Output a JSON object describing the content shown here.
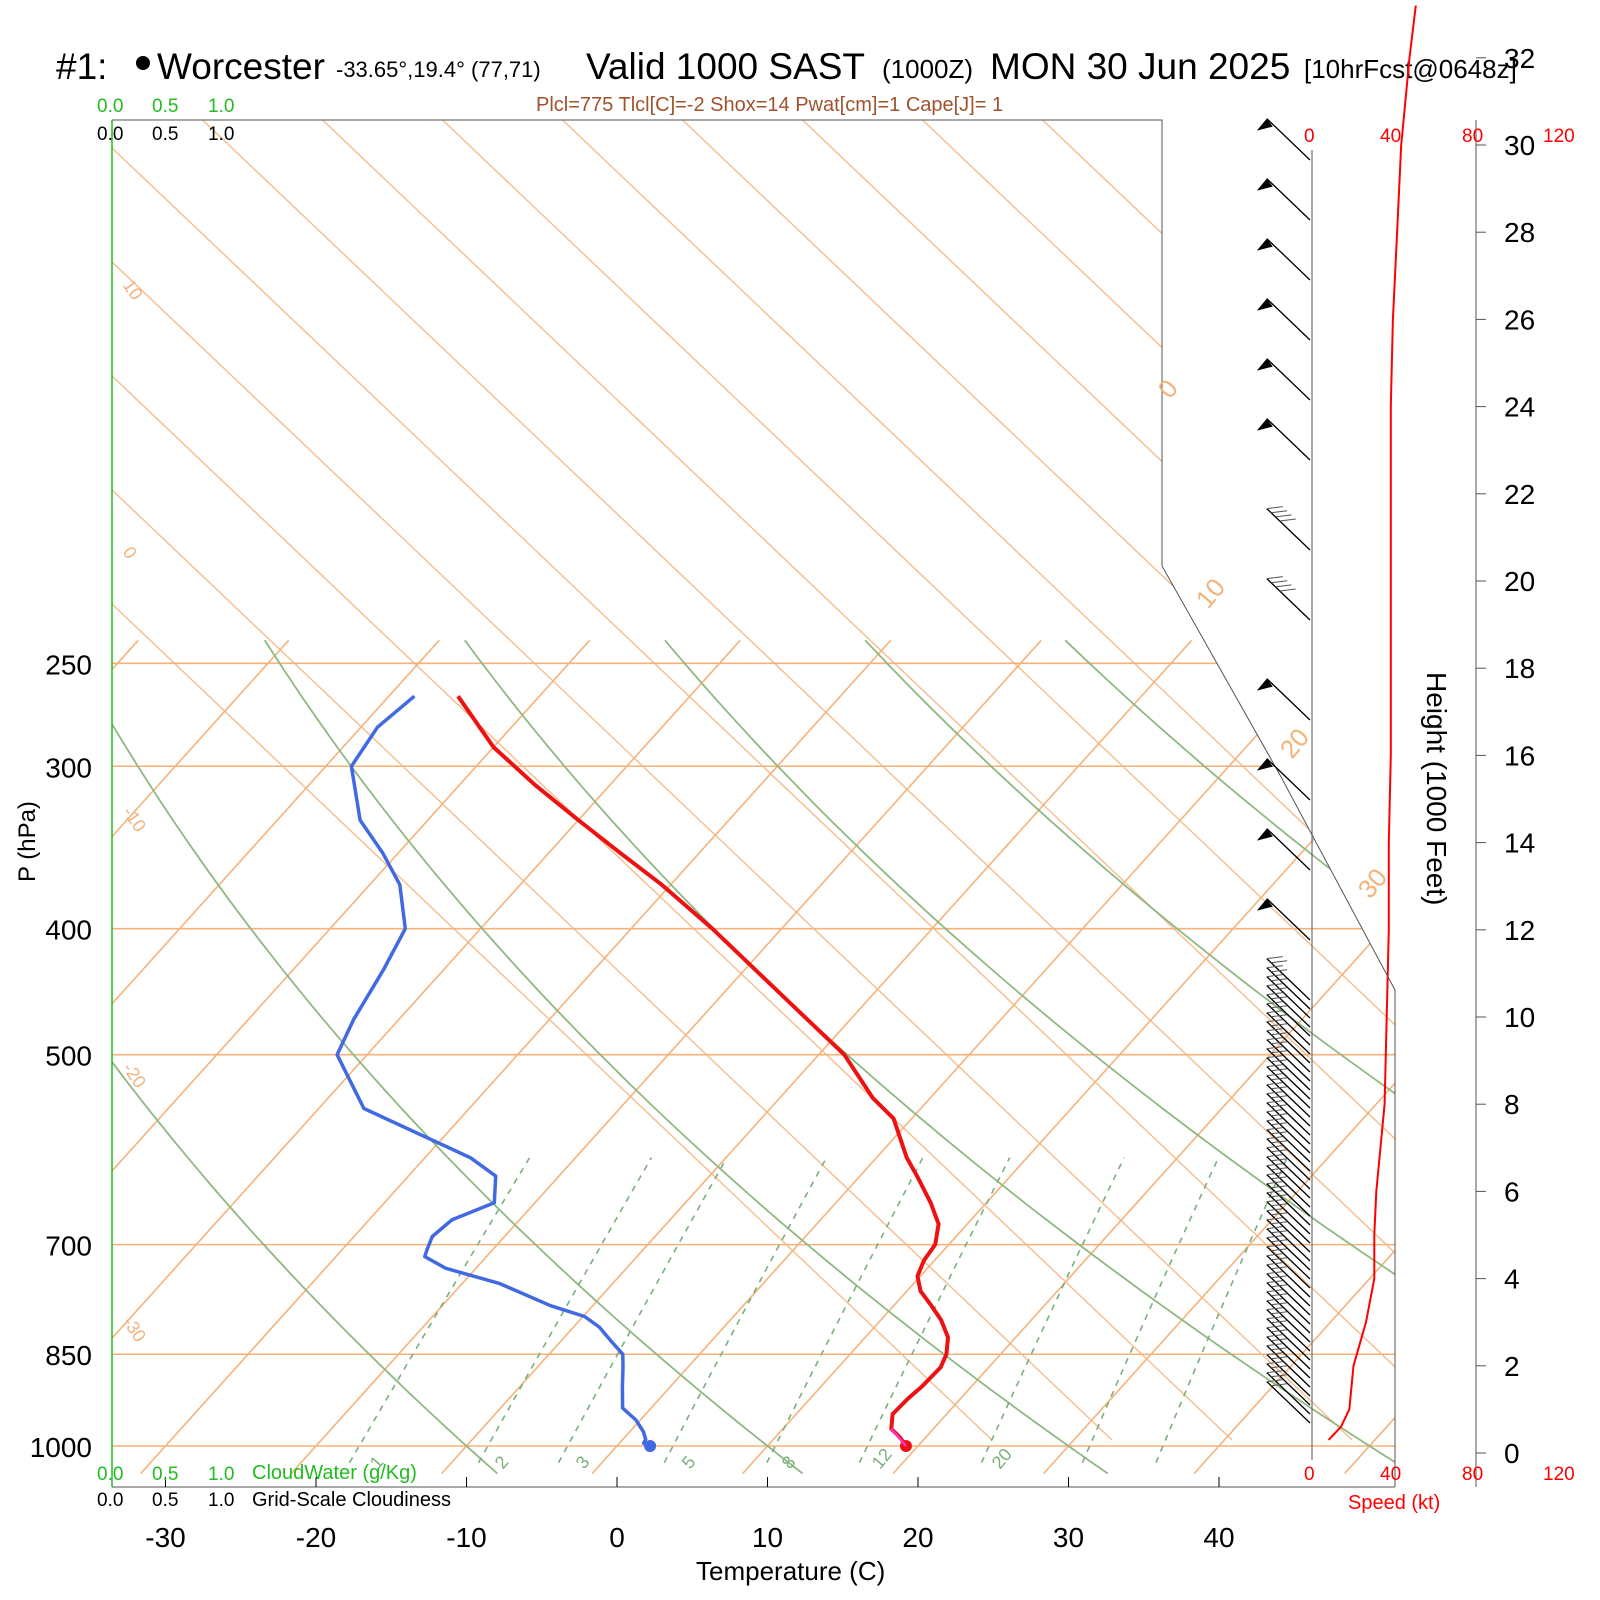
{
  "header": {
    "plot_id": "#1:",
    "station": "Worcester",
    "coords": "-33.65°,19.4° (77,71)",
    "valid_main": "Valid 1000 SAST",
    "valid_z": "(1000Z)",
    "date": "MON 30 Jun 2025",
    "forecast": "[10hrFcst@0648z]",
    "indices": "Plcl=775 Tlcl[C]=-2 Shox=14 Pwat[cm]=1 Cape[J]= 1"
  },
  "colors": {
    "temperature": "#ee1111",
    "dewpoint": "#4169e1",
    "isotherm": "#f5b27a",
    "dry_adiabat": "#8fb883",
    "mixing_ratio": "#79b079",
    "cloud_scale": "#22bb22",
    "speed": "#ff0000",
    "indices": "#a0522d"
  },
  "scales": {
    "cloudwater_ticks": [
      "0.0",
      "0.5",
      "1.0"
    ],
    "cloudiness_ticks": [
      "0.0",
      "0.5",
      "1.0"
    ],
    "cloudwater_label": "CloudWater (g/Kg)",
    "cloudiness_label": "Grid-Scale Cloudiness",
    "speed_ticks": [
      "0",
      "40",
      "80",
      "120"
    ],
    "speed_label": "Speed (kt)"
  },
  "chart_data": {
    "type": "line",
    "chart_kind": "Skew-T log-P sounding",
    "xlabel": "Temperature (C)",
    "ylabel": "P (hPa)",
    "y2label": "Height (1000 Feet)",
    "pressure_ticks": [
      250,
      300,
      400,
      500,
      700,
      850,
      1000
    ],
    "temperature_ticks": [
      -30,
      -20,
      -10,
      0,
      10,
      20,
      30,
      40
    ],
    "height_ticks": [
      0,
      2,
      4,
      6,
      8,
      10,
      12,
      14,
      16,
      18,
      20,
      22,
      24,
      26,
      28,
      30,
      32
    ],
    "isotherm_label_values": [
      "10",
      "0",
      "-10",
      "-20",
      "-30"
    ],
    "isotherm_right_labels": [
      "0",
      "10",
      "20",
      "30"
    ],
    "mixing_ratio_labels": [
      "1",
      "2",
      "3",
      "5",
      "8",
      "12",
      "20"
    ],
    "y_scale": "log",
    "ylim": [
      1030,
      250
    ],
    "xlim": [
      -34,
      36
    ],
    "series": [
      {
        "name": "Temperature",
        "points": [
          [
            1000,
            19.2
          ],
          [
            985,
            18.3
          ],
          [
            970,
            17.2
          ],
          [
            945,
            16.4
          ],
          [
            920,
            16.5
          ],
          [
            900,
            16.7
          ],
          [
            870,
            16.8
          ],
          [
            850,
            16.4
          ],
          [
            825,
            15.5
          ],
          [
            800,
            14.0
          ],
          [
            780,
            12.5
          ],
          [
            760,
            10.9
          ],
          [
            740,
            9.8
          ],
          [
            720,
            9.3
          ],
          [
            700,
            9.1
          ],
          [
            675,
            8.1
          ],
          [
            650,
            6.3
          ],
          [
            620,
            3.8
          ],
          [
            600,
            2.0
          ],
          [
            560,
            -1.2
          ],
          [
            540,
            -3.8
          ],
          [
            500,
            -8.3
          ],
          [
            450,
            -16.0
          ],
          [
            400,
            -24.6
          ],
          [
            370,
            -30.6
          ],
          [
            350,
            -35.2
          ],
          [
            330,
            -40.0
          ],
          [
            310,
            -45.0
          ],
          [
            290,
            -50.0
          ],
          [
            265,
            -55.4
          ]
        ]
      },
      {
        "name": "Dewpoint",
        "points": [
          [
            1000,
            2.2
          ],
          [
            995,
            1.6
          ],
          [
            988,
            1.5
          ],
          [
            975,
            0.9
          ],
          [
            955,
            -0.3
          ],
          [
            935,
            -1.9
          ],
          [
            900,
            -3.2
          ],
          [
            870,
            -4.3
          ],
          [
            850,
            -5.1
          ],
          [
            830,
            -6.7
          ],
          [
            810,
            -8.3
          ],
          [
            795,
            -9.9
          ],
          [
            780,
            -12.8
          ],
          [
            750,
            -17.5
          ],
          [
            730,
            -22.0
          ],
          [
            715,
            -24.1
          ],
          [
            705,
            -24.4
          ],
          [
            690,
            -24.8
          ],
          [
            670,
            -24.5
          ],
          [
            650,
            -22.7
          ],
          [
            620,
            -24.2
          ],
          [
            600,
            -27.0
          ],
          [
            550,
            -37.0
          ],
          [
            500,
            -42.0
          ],
          [
            470,
            -43.0
          ],
          [
            430,
            -44.0
          ],
          [
            400,
            -45.0
          ],
          [
            370,
            -48.0
          ],
          [
            350,
            -51.0
          ],
          [
            330,
            -54.5
          ],
          [
            300,
            -58.3
          ],
          [
            280,
            -58.9
          ],
          [
            265,
            -58.3
          ]
        ]
      }
    ],
    "parcel_segment": [
      [
        1000,
        19.2
      ],
      [
        970,
        17.2
      ]
    ],
    "wind_speed_kt": [
      [
        0.3,
        8
      ],
      [
        0.6,
        14
      ],
      [
        1,
        18
      ],
      [
        2,
        20
      ],
      [
        3,
        26
      ],
      [
        4,
        30
      ],
      [
        5,
        30
      ],
      [
        6,
        31
      ],
      [
        8,
        35
      ],
      [
        10,
        36
      ],
      [
        12,
        37
      ],
      [
        14,
        37
      ],
      [
        16,
        38
      ],
      [
        18,
        38
      ],
      [
        20,
        38
      ],
      [
        22,
        38
      ],
      [
        24,
        38
      ],
      [
        26,
        39
      ],
      [
        28,
        41
      ],
      [
        30,
        43
      ],
      [
        32,
        47
      ],
      [
        33.2,
        50
      ]
    ]
  }
}
